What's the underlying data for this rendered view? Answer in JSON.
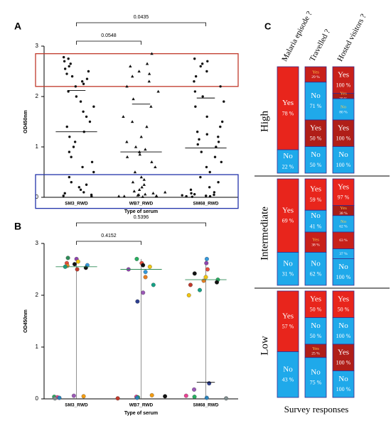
{
  "chart_data": [
    {
      "type": "dotplot",
      "panel": "A",
      "ylabel": "OD450nm",
      "xlabel": "Type of serum",
      "ylim": [
        0,
        3
      ],
      "yticks": [
        0,
        1,
        2,
        3
      ],
      "comparisons": [
        {
          "label": "0.0548"
        },
        {
          "label": "0.0435"
        }
      ],
      "highlights": [
        {
          "color": "#c0392b",
          "range": [
            2.2,
            2.85
          ]
        },
        {
          "color": "#2233aa",
          "range": [
            -0.22,
            0.45
          ]
        }
      ],
      "series": [
        {
          "name": "SM3_RWD",
          "marker": "circle",
          "color": "#111111",
          "mean": 1.3,
          "upper": 2.12,
          "values": [
            2.78,
            2.75,
            2.7,
            2.65,
            2.6,
            2.55,
            2.5,
            2.45,
            2.4,
            2.35,
            2.3,
            2.25,
            2.2,
            2.1,
            2.0,
            1.9,
            1.8,
            1.7,
            1.6,
            1.5,
            1.4,
            1.3,
            1.2,
            1.1,
            1.0,
            0.9,
            0.8,
            0.7,
            0.6,
            0.5,
            0.4,
            0.3,
            0.25,
            0.2,
            0.15,
            0.1,
            0.08,
            0.05,
            0.03,
            0.02
          ]
        },
        {
          "name": "WB7_RWD",
          "marker": "triangle",
          "color": "#111111",
          "mean": 0.9,
          "upper": 1.85,
          "values": [
            2.85,
            2.65,
            2.6,
            2.5,
            2.45,
            2.4,
            2.3,
            2.2,
            2.1,
            1.95,
            1.8,
            1.6,
            1.5,
            1.4,
            1.2,
            1.1,
            1.0,
            0.95,
            0.9,
            0.85,
            0.8,
            0.7,
            0.6,
            0.5,
            0.4,
            0.35,
            0.3,
            0.25,
            0.2,
            0.15,
            0.12,
            0.1,
            0.08,
            0.06,
            0.05,
            0.04,
            0.03,
            0.02,
            0.02,
            0.01
          ]
        },
        {
          "name": "SM68_RWD",
          "marker": "circle",
          "color": "#111111",
          "mean": 0.98,
          "upper": 1.97,
          "values": [
            2.75,
            2.7,
            2.65,
            2.6,
            2.5,
            2.4,
            2.3,
            2.2,
            2.1,
            2.0,
            1.9,
            1.8,
            1.6,
            1.5,
            1.4,
            1.3,
            1.25,
            1.2,
            1.15,
            1.1,
            1.05,
            1.0,
            0.9,
            0.8,
            0.7,
            0.6,
            0.5,
            0.4,
            0.3,
            0.2,
            0.15,
            0.1,
            0.08,
            0.06,
            0.05,
            0.04,
            0.03,
            0.02,
            0.02,
            0.01
          ]
        }
      ]
    },
    {
      "type": "dotplot",
      "panel": "B",
      "ylabel": "OD450nm",
      "xlabel": "Type of serum",
      "ylim": [
        0,
        3
      ],
      "yticks": [
        0,
        1,
        2,
        3
      ],
      "comparisons": [
        {
          "label": "0.4152"
        },
        {
          "label": "0.5396"
        }
      ],
      "series": [
        {
          "name": "SM3_RWD",
          "marker": "circle",
          "mean": 2.55,
          "values": [
            2.72,
            2.7,
            2.65,
            2.62,
            2.6,
            2.58,
            2.57,
            2.55,
            2.53,
            2.5,
            0.06,
            0.05,
            0.04,
            0.03,
            0.02,
            0.01
          ],
          "colors": [
            "#2e8b57",
            "#8e44ad",
            "#f1c40f",
            "#e74c3c",
            "#111111",
            "#3498db",
            "#e67e22",
            "#16a085",
            "#111111",
            "#c0392b",
            "#9b59b6",
            "#f39c12",
            "#27ae60",
            "#e84393",
            "#2980b9",
            "#7f8c8d"
          ]
        },
        {
          "name": "WB7_RWD",
          "marker": "circle",
          "mean": 2.5,
          "values": [
            2.7,
            2.62,
            2.58,
            2.55,
            2.5,
            2.45,
            2.35,
            2.2,
            2.05,
            1.88,
            0.07,
            0.05,
            0.04,
            0.03,
            0.02,
            0.01
          ],
          "colors": [
            "#27ae60",
            "#e74c3c",
            "#111111",
            "#f1c40f",
            "#8e44ad",
            "#3498db",
            "#e67e22",
            "#16a085",
            "#9b59b6",
            "#2c3e8f",
            "#f39c12",
            "#111111",
            "#e84393",
            "#27ae60",
            "#2980b9",
            "#c0392b"
          ]
        },
        {
          "name": "SM68_RWD",
          "marker": "circle",
          "mean": 2.3,
          "lower": 0.32,
          "values": [
            2.7,
            2.62,
            2.5,
            2.42,
            2.35,
            2.3,
            2.28,
            2.25,
            2.2,
            2.1,
            2.0,
            0.3,
            0.18,
            0.06,
            0.04,
            0.02,
            0.01
          ],
          "colors": [
            "#3498db",
            "#8e44ad",
            "#e74c3c",
            "#111111",
            "#f1c40f",
            "#27ae60",
            "#e67e22",
            "#111111",
            "#c0392b",
            "#16a085",
            "#f1c40f",
            "#2c3e8f",
            "#9b59b6",
            "#e84393",
            "#27ae60",
            "#2980b9",
            "#7f8c8d"
          ]
        }
      ]
    },
    {
      "type": "stacked-bar",
      "panel": "C",
      "xlabel": "Survey responses",
      "columns": [
        "Malaria episode ?",
        "Travelled ?",
        "Hosted visitors ?"
      ],
      "groups": [
        {
          "name": "High",
          "cells": [
            [
              [
                {
                  "name": "Yes",
                  "value": 78,
                  "value_label": "78 %",
                  "color": "#e8251c"
                },
                {
                  "name": "No",
                  "value": 22,
                  "value_label": "22 %",
                  "color": "#1fa9ea"
                }
              ]
            ],
            [
              [
                {
                  "name": "Yes",
                  "value": 29,
                  "value_label": "29 %",
                  "color": "#c8201a"
                },
                {
                  "name": "No",
                  "value": 71,
                  "value_label": "71 %",
                  "color": "#1fa9ea"
                }
              ],
              [
                {
                  "name": "Yes",
                  "value": 50,
                  "value_label": "50 %",
                  "color": "#b01e18"
                },
                {
                  "name": "No",
                  "value": 50,
                  "value_label": "50 %",
                  "color": "#1fa9ea"
                }
              ]
            ],
            [
              [
                {
                  "name": "Yes",
                  "value": 100,
                  "value_label": "100 %",
                  "color": "#c8201a"
                }
              ],
              [
                {
                  "name": "Yes",
                  "value": 20,
                  "value_label": "20 %",
                  "color": "#a81c16"
                },
                {
                  "name": "No",
                  "value": 80,
                  "value_label": "80 %",
                  "color": "#1fa9ea"
                }
              ],
              [
                {
                  "name": "Yes",
                  "value": 100,
                  "value_label": "100 %",
                  "color": "#b01e18"
                }
              ],
              [
                {
                  "name": "No",
                  "value": 100,
                  "value_label": "100 %",
                  "color": "#1fa9ea"
                }
              ]
            ]
          ]
        },
        {
          "name": "Intermediate",
          "cells": [
            [
              [
                {
                  "name": "Yes",
                  "value": 69,
                  "value_label": "69 %",
                  "color": "#e8251c"
                },
                {
                  "name": "No",
                  "value": 31,
                  "value_label": "31 %",
                  "color": "#1fa9ea"
                }
              ]
            ],
            [
              [
                {
                  "name": "Yes",
                  "value": 59,
                  "value_label": "59 %",
                  "color": "#e8251c"
                },
                {
                  "name": "No",
                  "value": 41,
                  "value_label": "41 %",
                  "color": "#1fa9ea"
                }
              ],
              [
                {
                  "name": "Yes",
                  "value": 38,
                  "value_label": "38 %",
                  "color": "#c8201a"
                },
                {
                  "name": "No",
                  "value": 62,
                  "value_label": "62 %",
                  "color": "#1fa9ea"
                }
              ]
            ],
            [
              [
                {
                  "name": "Yes",
                  "value": 97,
                  "value_label": "97 %",
                  "color": "#e8251c"
                }
              ],
              [
                {
                  "name": "Yes",
                  "value": 38,
                  "value_label": "38 %",
                  "color": "#a81c16"
                },
                {
                  "name": "No",
                  "value": 62,
                  "value_label": "62 %",
                  "color": "#1fa9ea"
                }
              ],
              [
                {
                  "value": 63,
                  "value_label": "63 %",
                  "color": "#c8201a"
                },
                {
                  "value": 37,
                  "value_label": "37 %",
                  "color": "#1fa9ea"
                }
              ],
              [
                {
                  "name": "No",
                  "value": 100,
                  "value_label": "100 %",
                  "color": "#1fa9ea"
                }
              ]
            ]
          ]
        },
        {
          "name": "Low",
          "cells": [
            [
              [
                {
                  "name": "Yes",
                  "value": 57,
                  "value_label": "57 %",
                  "color": "#e8251c"
                },
                {
                  "name": "No",
                  "value": 43,
                  "value_label": "43 %",
                  "color": "#1fa9ea"
                }
              ]
            ],
            [
              [
                {
                  "name": "Yes",
                  "value": 50,
                  "value_label": "50 %",
                  "color": "#e8251c"
                },
                {
                  "name": "No",
                  "value": 50,
                  "value_label": "50 %",
                  "color": "#1fa9ea"
                }
              ],
              [
                {
                  "name": "Yes",
                  "value": 25,
                  "value_label": "25 %",
                  "color": "#b01e18"
                },
                {
                  "name": "No",
                  "value": 75,
                  "value_label": "75 %",
                  "color": "#1fa9ea"
                }
              ]
            ],
            [
              [
                {
                  "name": "Yes",
                  "value": 50,
                  "value_label": "50 %",
                  "color": "#e8251c"
                }
              ],
              [
                {
                  "name": "No",
                  "value": 100,
                  "value_label": "100 %",
                  "color": "#1fa9ea"
                }
              ],
              [
                {
                  "name": "Yes",
                  "value": 100,
                  "value_label": "100 %",
                  "color": "#b01e18"
                }
              ],
              [
                {
                  "name": "No",
                  "value": 100,
                  "value_label": "100 %",
                  "color": "#1fa9ea"
                }
              ]
            ]
          ]
        }
      ]
    }
  ]
}
